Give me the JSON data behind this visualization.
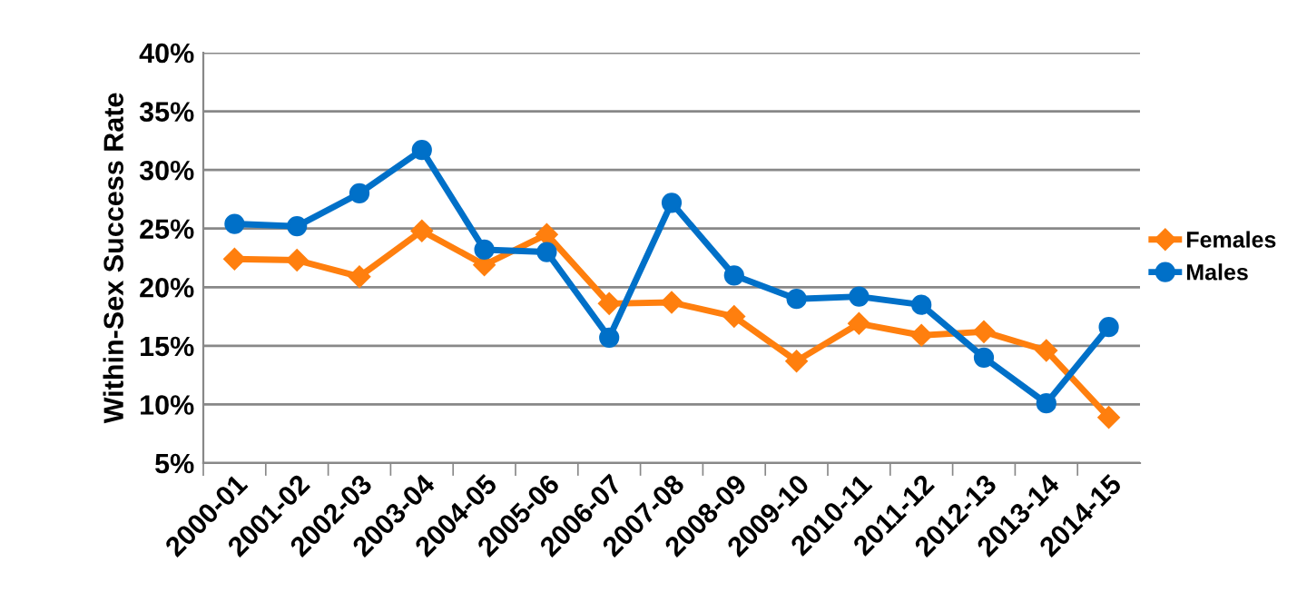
{
  "chart_data": {
    "type": "line",
    "ylabel": "Within-Sex Success Rate",
    "categories": [
      "2000-01",
      "2001-02",
      "2002-03",
      "2003-04",
      "2004-05",
      "2005-06",
      "2006-07",
      "2007-08",
      "2008-09",
      "2009-10",
      "2010-11",
      "2011-12",
      "2012-13",
      "2013-14",
      "2014-15"
    ],
    "series": [
      {
        "name": "Females",
        "color": "#ff7f0e",
        "marker": "diamond",
        "values": [
          22.4,
          22.3,
          20.9,
          24.8,
          21.9,
          24.5,
          18.6,
          18.7,
          17.5,
          13.7,
          16.9,
          15.9,
          16.2,
          14.6,
          8.9
        ]
      },
      {
        "name": "Males",
        "color": "#0070c8",
        "marker": "circle",
        "values": [
          25.4,
          25.2,
          28.0,
          31.7,
          23.2,
          23.0,
          15.7,
          27.2,
          21.0,
          19.0,
          19.2,
          18.5,
          14.0,
          10.1,
          16.6
        ]
      }
    ],
    "ylim": [
      5,
      40
    ],
    "yticks": [
      {
        "value": 5,
        "label": "5%"
      },
      {
        "value": 10,
        "label": "10%"
      },
      {
        "value": 15,
        "label": "15%"
      },
      {
        "value": 20,
        "label": "20%"
      },
      {
        "value": 25,
        "label": "25%"
      },
      {
        "value": 30,
        "label": "30%"
      },
      {
        "value": 35,
        "label": "35%"
      },
      {
        "value": 40,
        "label": "40%"
      }
    ],
    "grid": "y",
    "legend": "right"
  }
}
